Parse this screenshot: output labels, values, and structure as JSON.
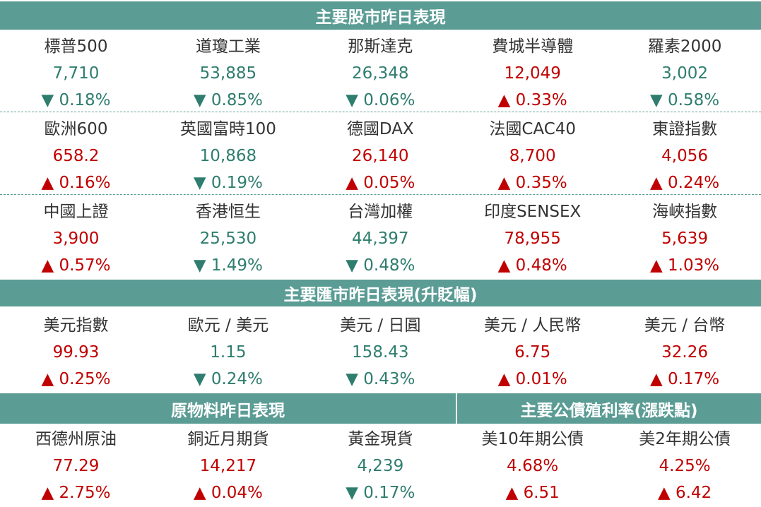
{
  "stocks": {
    "title": "主要股市昨日表現",
    "rows": [
      [
        {
          "name": "標普500",
          "value": "7,710",
          "change": "▼ 0.18%",
          "color": "#2e7d6e"
        },
        {
          "name": "道瓊工業",
          "value": "53,885",
          "change": "▼ 0.85%",
          "color": "#2e7d6e"
        },
        {
          "name": "那斯達克",
          "value": "26,348",
          "change": "▼ 0.06%",
          "color": "#2e7d6e"
        },
        {
          "name": "費城半導體",
          "value": "12,049",
          "change": "▲ 0.33%",
          "color": "#c00000"
        },
        {
          "name": "羅素2000",
          "value": "3,002",
          "change": "▼ 0.58%",
          "color": "#2e7d6e"
        }
      ],
      [
        {
          "name": "歐洲600",
          "value": "658.2",
          "change": "▲ 0.16%",
          "color": "#c00000"
        },
        {
          "name": "英國富時100",
          "value": "10,868",
          "change": "▼ 0.19%",
          "color": "#2e7d6e"
        },
        {
          "name": "德國DAX",
          "value": "26,140",
          "change": "▲ 0.05%",
          "color": "#c00000"
        },
        {
          "name": "法國CAC40",
          "value": "8,700",
          "change": "▲ 0.35%",
          "color": "#c00000"
        },
        {
          "name": "東證指數",
          "value": "4,056",
          "change": "▲ 0.24%",
          "color": "#c00000"
        }
      ],
      [
        {
          "name": "中國上證",
          "value": "3,900",
          "change": "▲ 0.57%",
          "color": "#c00000"
        },
        {
          "name": "香港恒生",
          "value": "25,530",
          "change": "▼ 1.49%",
          "color": "#2e7d6e"
        },
        {
          "name": "台灣加權",
          "value": "44,397",
          "change": "▼ 0.48%",
          "color": "#2e7d6e"
        },
        {
          "name": "印度SENSEX",
          "value": "78,955",
          "change": "▲ 0.48%",
          "color": "#c00000"
        },
        {
          "name": "海峽指數",
          "value": "5,639",
          "change": "▲ 1.03%",
          "color": "#c00000"
        }
      ]
    ]
  },
  "fx": {
    "title": "主要匯市昨日表現(升貶幅)",
    "rows": [
      [
        {
          "name": "美元指數",
          "value": "99.93",
          "change": "▲ 0.25%",
          "color": "#c00000"
        },
        {
          "name": "歐元 / 美元",
          "value": "1.15",
          "change": "▼ 0.24%",
          "color": "#2e7d6e"
        },
        {
          "name": "美元 / 日圓",
          "value": "158.43",
          "change": "▼ 0.43%",
          "color": "#2e7d6e"
        },
        {
          "name": "美元 / 人民幣",
          "value": "6.75",
          "change": "▲ 0.01%",
          "color": "#c00000"
        },
        {
          "name": "美元 / 台幣",
          "value": "32.26",
          "change": "▲ 0.17%",
          "color": "#c00000"
        }
      ]
    ]
  },
  "commodities": {
    "title": "原物料昨日表現",
    "items": [
      {
        "name": "西德州原油",
        "value": "77.29",
        "change": "▲ 2.75%",
        "color": "#c00000"
      },
      {
        "name": "銅近月期貨",
        "value": "14,217",
        "change": "▲ 0.04%",
        "color": "#c00000"
      },
      {
        "name": "黃金現貨",
        "value": "4,239",
        "change": "▼ 0.17%",
        "color": "#2e7d6e"
      }
    ]
  },
  "bonds": {
    "title": "主要公債殖利率(漲跌點)",
    "items": [
      {
        "name": "美10年期公債",
        "value": "4.68%",
        "change": "▲ 6.51",
        "color": "#c00000"
      },
      {
        "name": "美2年期公債",
        "value": "4.25%",
        "change": "▲ 6.42",
        "color": "#c00000"
      }
    ]
  }
}
